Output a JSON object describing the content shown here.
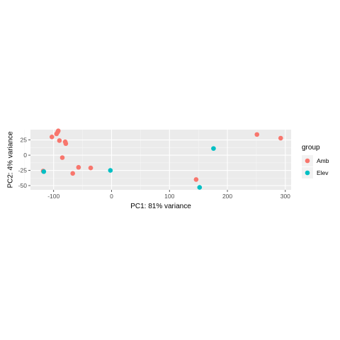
{
  "chart_data": {
    "type": "scatter",
    "xlabel": "PC1: 81% variance",
    "ylabel": "PC2: 4% variance",
    "xlim": [
      -140,
      310
    ],
    "ylim": [
      -57,
      42
    ],
    "x_ticks": [
      -100,
      0,
      100,
      200,
      300
    ],
    "x_tick_labels": [
      "-100",
      "0",
      "100",
      "200",
      "300"
    ],
    "y_ticks": [
      -50,
      -25,
      0,
      25
    ],
    "y_tick_labels": [
      "-50",
      "-25",
      "0",
      "25"
    ],
    "grid": true,
    "legend": {
      "title": "group",
      "placement": "right",
      "entries": [
        {
          "label": "Amb",
          "color": "#F8766D"
        },
        {
          "label": "Elev",
          "color": "#00BFC4"
        }
      ]
    },
    "series": [
      {
        "name": "Amb",
        "color": "#F8766D",
        "points": [
          {
            "x": -103,
            "y": 30
          },
          {
            "x": -95,
            "y": 35
          },
          {
            "x": -92,
            "y": 40
          },
          {
            "x": -93,
            "y": 38
          },
          {
            "x": -90,
            "y": 24
          },
          {
            "x": -80,
            "y": 22
          },
          {
            "x": -79,
            "y": 19
          },
          {
            "x": -85,
            "y": -4
          },
          {
            "x": -57,
            "y": -20
          },
          {
            "x": -36,
            "y": -21
          },
          {
            "x": -67,
            "y": -30
          },
          {
            "x": -118,
            "y": -26
          },
          {
            "x": 146,
            "y": -40
          },
          {
            "x": 251,
            "y": 34
          },
          {
            "x": 292,
            "y": 28
          }
        ]
      },
      {
        "name": "Elev",
        "color": "#00BFC4",
        "points": [
          {
            "x": -117,
            "y": -27
          },
          {
            "x": -2,
            "y": -25
          },
          {
            "x": 176,
            "y": 11
          },
          {
            "x": 152,
            "y": -53
          }
        ]
      }
    ]
  }
}
